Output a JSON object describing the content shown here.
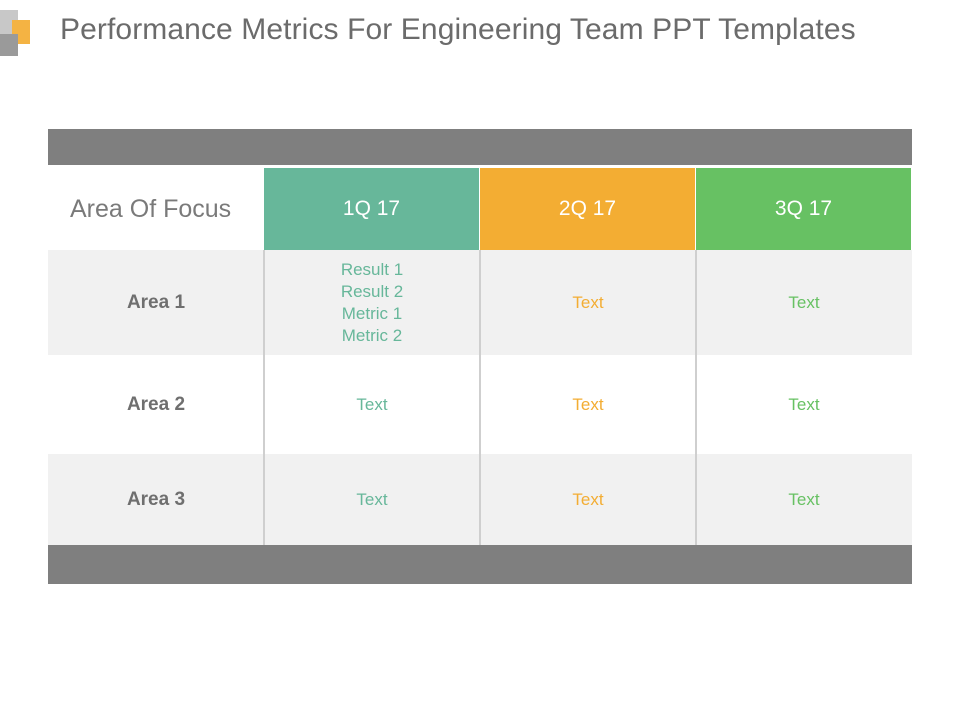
{
  "title": "Performance Metrics For Engineering Team PPT Templates",
  "table": {
    "focus_header": "Area Of Focus",
    "quarters": [
      "1Q 17",
      "2Q 17",
      "3Q 17"
    ],
    "rows": [
      {
        "area": "Area 1",
        "cells": [
          [
            "Result 1",
            "Result 2",
            "Metric 1",
            "Metric 2"
          ],
          [
            "Text"
          ],
          [
            "Text"
          ]
        ]
      },
      {
        "area": "Area 2",
        "cells": [
          [
            "Text"
          ],
          [
            "Text"
          ],
          [
            "Text"
          ]
        ]
      },
      {
        "area": "Area 3",
        "cells": [
          [
            "Text"
          ],
          [
            "Text"
          ],
          [
            "Text"
          ]
        ]
      }
    ]
  },
  "colors": {
    "q1": "#67b79a",
    "q2": "#f3ad33",
    "q3": "#67c163",
    "bar": "#7f7f7f",
    "row_gray": "#f1f1f1"
  }
}
